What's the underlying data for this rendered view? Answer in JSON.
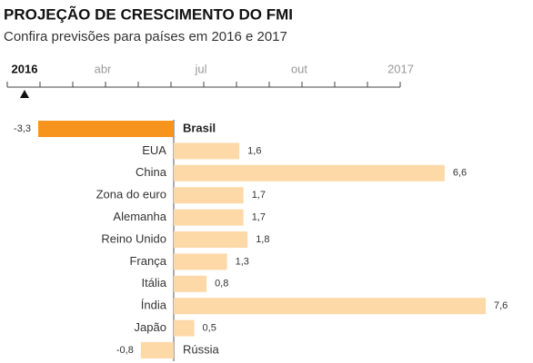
{
  "header": {
    "title": "PROJEÇÃO DE CRESCIMENTO DO FMI",
    "subtitle": "Confira previsões para países em 2016 e 2017"
  },
  "slider": {
    "labels": [
      "2016",
      "abr",
      "jul",
      "out",
      "2017"
    ]
  },
  "chart_data": {
    "type": "hbar",
    "categories": [
      "Brasil",
      "EUA",
      "China",
      "Zona do euro",
      "Alemanha",
      "Reino Unido",
      "França",
      "Itália",
      "Índia",
      "Japão",
      "Rússia"
    ],
    "values": [
      -3.3,
      1.6,
      6.6,
      1.7,
      1.7,
      1.8,
      1.3,
      0.8,
      7.6,
      0.5,
      -0.8
    ],
    "value_labels": [
      "-3,3",
      "1,6",
      "6,6",
      "1,7",
      "1,7",
      "1,8",
      "1,3",
      "0,8",
      "7,6",
      "0,5",
      "-0,8"
    ],
    "colors": [
      "#f7941d",
      "#fdd9a8",
      "#fdd9a8",
      "#fdd9a8",
      "#fdd9a8",
      "#fdd9a8",
      "#fdd9a8",
      "#fdd9a8",
      "#fdd9a8",
      "#fdd9a8",
      "#fdd9a8"
    ],
    "xlim": [
      -3.3,
      7.6
    ]
  }
}
